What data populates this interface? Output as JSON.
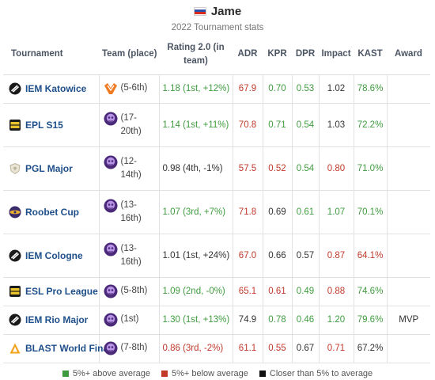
{
  "player": {
    "name": "Jame",
    "subtitle": "2022 Tournament stats"
  },
  "flag_colors": [
    "#ffffff",
    "#2d4ea8",
    "#d52b1e"
  ],
  "colors": {
    "above": "#3f9b3f",
    "below": "#c0392b",
    "neutral": "#333333",
    "link": "#1f4f8a"
  },
  "headers": {
    "tournament": "Tournament",
    "team": "Team (place)",
    "rating": "Rating 2.0 (in team)",
    "adr": "ADR",
    "kpr": "KPR",
    "dpr": "DPR",
    "impact": "Impact",
    "kast": "KAST",
    "award": "Award"
  },
  "rows": [
    {
      "tournament": "IEM Katowice",
      "icon": "iem-logo-icon",
      "team_logo": "virtus-pro-logo-icon",
      "place": "(5-6th)",
      "rating": "1.18 (1st, +12%)",
      "rating_c": "g",
      "adr": "67.9",
      "adr_c": "r",
      "kpr": "0.70",
      "kpr_c": "g",
      "dpr": "0.53",
      "dpr_c": "g",
      "impact": "1.02",
      "impact_c": "n",
      "kast": "78.6%",
      "kast_c": "g",
      "award": ""
    },
    {
      "tournament": "EPL S15",
      "icon": "pro-league-logo-icon",
      "team_logo": "outsiders-logo-icon",
      "place": "(17-20th)",
      "rating": "1.14 (1st, +11%)",
      "rating_c": "g",
      "adr": "70.8",
      "adr_c": "r",
      "kpr": "0.71",
      "kpr_c": "g",
      "dpr": "0.54",
      "dpr_c": "g",
      "impact": "1.03",
      "impact_c": "n",
      "kast": "72.2%",
      "kast_c": "g",
      "award": ""
    },
    {
      "tournament": "PGL Major",
      "icon": "pgl-logo-icon",
      "team_logo": "outsiders-logo-icon",
      "place": "(12-14th)",
      "rating": "0.98 (4th, -1%)",
      "rating_c": "n",
      "adr": "57.5",
      "adr_c": "r",
      "kpr": "0.52",
      "kpr_c": "r",
      "dpr": "0.54",
      "dpr_c": "g",
      "impact": "0.80",
      "impact_c": "r",
      "kast": "71.0%",
      "kast_c": "g",
      "award": ""
    },
    {
      "tournament": "Roobet Cup",
      "icon": "roobet-logo-icon",
      "team_logo": "outsiders-logo-icon",
      "place": "(13-16th)",
      "rating": "1.07 (3rd, +7%)",
      "rating_c": "g",
      "adr": "71.8",
      "adr_c": "r",
      "kpr": "0.69",
      "kpr_c": "n",
      "dpr": "0.61",
      "dpr_c": "g",
      "impact": "1.07",
      "impact_c": "g",
      "kast": "70.1%",
      "kast_c": "g",
      "award": ""
    },
    {
      "tournament": "IEM Cologne",
      "icon": "iem-logo-icon",
      "team_logo": "outsiders-logo-icon",
      "place": "(13-16th)",
      "rating": "1.01 (1st, +24%)",
      "rating_c": "n",
      "adr": "67.0",
      "adr_c": "r",
      "kpr": "0.66",
      "kpr_c": "n",
      "dpr": "0.57",
      "dpr_c": "n",
      "impact": "0.87",
      "impact_c": "r",
      "kast": "64.1%",
      "kast_c": "r",
      "award": ""
    },
    {
      "tournament": "ESL Pro League",
      "icon": "pro-league-logo-icon",
      "team_logo": "outsiders-logo-icon",
      "place": "(5-8th)",
      "rating": "1.09 (2nd, -0%)",
      "rating_c": "g",
      "adr": "65.1",
      "adr_c": "r",
      "kpr": "0.61",
      "kpr_c": "r",
      "dpr": "0.49",
      "dpr_c": "g",
      "impact": "0.88",
      "impact_c": "r",
      "kast": "74.6%",
      "kast_c": "g",
      "award": ""
    },
    {
      "tournament": "IEM Rio Major",
      "icon": "iem-logo-icon",
      "team_logo": "outsiders-logo-icon",
      "place": "(1st)",
      "rating": "1.30 (1st, +13%)",
      "rating_c": "g",
      "adr": "74.9",
      "adr_c": "n",
      "kpr": "0.78",
      "kpr_c": "g",
      "dpr": "0.46",
      "dpr_c": "g",
      "impact": "1.20",
      "impact_c": "g",
      "kast": "79.6%",
      "kast_c": "g",
      "award": "MVP"
    },
    {
      "tournament": "BLAST World Final",
      "icon": "blast-logo-icon",
      "team_logo": "outsiders-logo-icon",
      "place": "(7-8th)",
      "rating": "0.86 (3rd, -2%)",
      "rating_c": "r",
      "adr": "61.1",
      "adr_c": "r",
      "kpr": "0.55",
      "kpr_c": "r",
      "dpr": "0.67",
      "dpr_c": "n",
      "impact": "0.71",
      "impact_c": "r",
      "kast": "67.2%",
      "kast_c": "n",
      "award": ""
    }
  ],
  "legend": [
    {
      "label": "5%+ above average",
      "color": "#3f9b3f"
    },
    {
      "label": "5%+ below average",
      "color": "#c0392b"
    },
    {
      "label": "Closer than 5% to average",
      "color": "#111111"
    }
  ]
}
